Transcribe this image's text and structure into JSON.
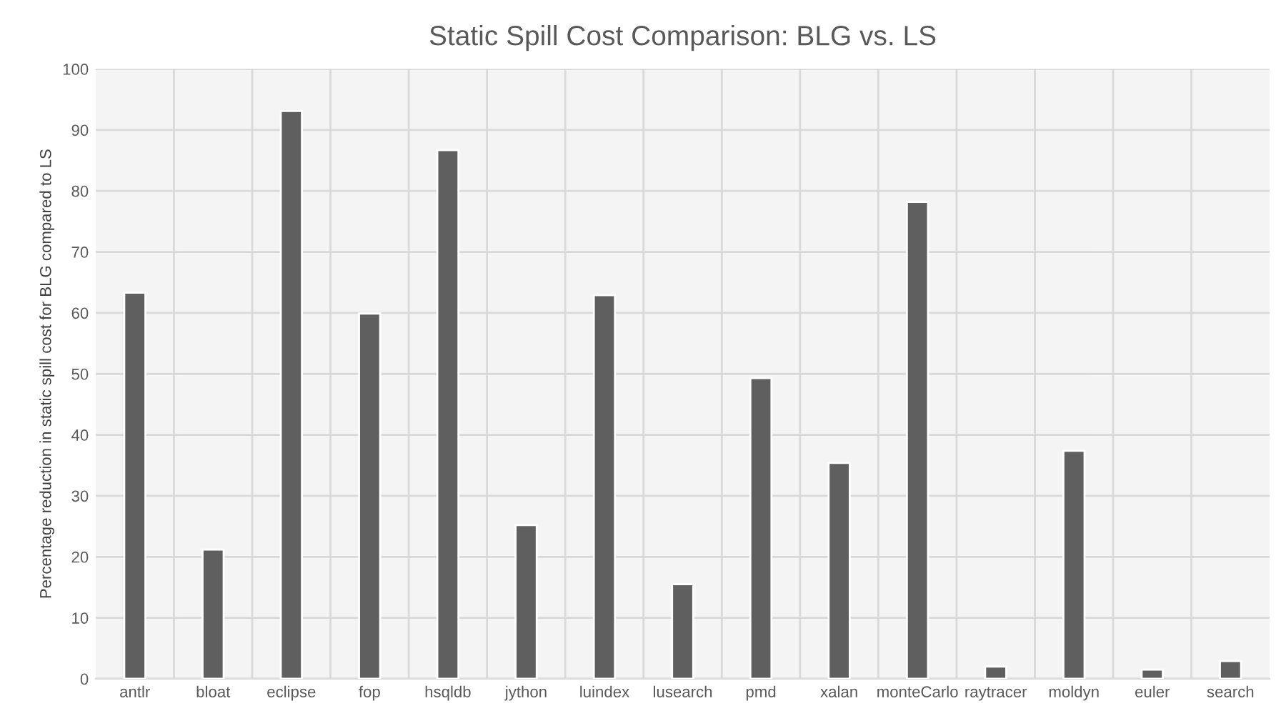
{
  "chart_data": {
    "type": "bar",
    "title": "Static Spill Cost Comparison: BLG vs. LS",
    "ylabel": "Percentage reduction in static spill cost for BLG compared to LS",
    "categories": [
      "antlr",
      "bloat",
      "eclipse",
      "fop",
      "hsqldb",
      "jython",
      "luindex",
      "lusearch",
      "pmd",
      "xalan",
      "monteCarlo",
      "raytracer",
      "moldyn",
      "euler",
      "search"
    ],
    "values": [
      63.3,
      21.2,
      93.1,
      59.9,
      86.7,
      25.2,
      62.9,
      15.5,
      49.3,
      35.4,
      78.2,
      2.0,
      37.4,
      1.5,
      2.9
    ],
    "color": "#5f5f5f",
    "ylim": [
      0,
      100
    ],
    "yticks": [
      0,
      10,
      20,
      30,
      40,
      50,
      60,
      70,
      80,
      90,
      100
    ],
    "grid": true
  }
}
